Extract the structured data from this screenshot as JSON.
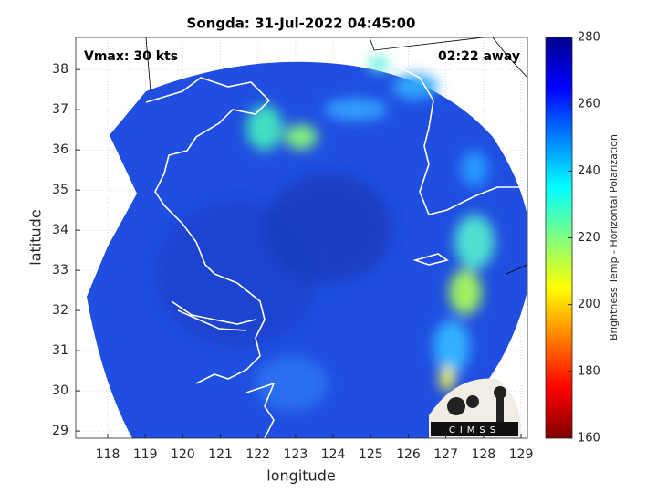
{
  "chart_data": {
    "type": "heatmap",
    "title": "Songda: 31-Jul-2022 04:45:00",
    "xlabel": "longitude",
    "ylabel": "latitude",
    "xlim": [
      117.15,
      129.17
    ],
    "xticks": [
      118,
      119,
      120,
      121,
      122,
      123,
      124,
      125,
      126,
      127,
      128,
      129
    ],
    "ylim": [
      28.82,
      38.8
    ],
    "yticks": [
      29,
      30,
      31,
      32,
      33,
      34,
      35,
      36,
      37,
      38
    ],
    "grid": true,
    "annotations": [
      "Vmax: 30 kts",
      "02:22 away"
    ],
    "logo_text": "CIMSS",
    "colorbar": {
      "label": "Brightness Temp - Horizontal Polarization",
      "lim": [
        160,
        280
      ],
      "ticks": [
        160,
        180,
        200,
        220,
        240,
        260,
        280
      ],
      "colors": [
        "#800000",
        "#ff0000",
        "#ff8000",
        "#ffff00",
        "#80ff80",
        "#00ffff",
        "#0080ff",
        "#0000ff",
        "#000090"
      ]
    }
  }
}
